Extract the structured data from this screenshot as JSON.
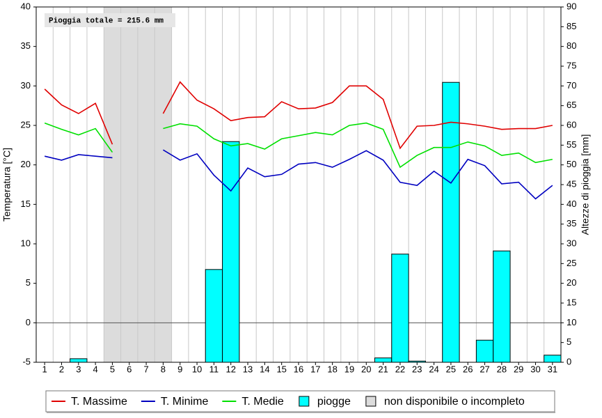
{
  "chart_data": {
    "type": "combo",
    "annotation": "Pioggia totale = 215.6 mm",
    "ylabel": "Temperatura [°C]",
    "y2label": "Altezze di pioggia [mm]",
    "categories": [
      "1",
      "2",
      "3",
      "4",
      "5",
      "6",
      "7",
      "8",
      "9",
      "10",
      "11",
      "12",
      "13",
      "14",
      "15",
      "16",
      "17",
      "18",
      "19",
      "20",
      "21",
      "22",
      "23",
      "24",
      "25",
      "26",
      "27",
      "28",
      "29",
      "30",
      "31"
    ],
    "ylim": [
      -5,
      40
    ],
    "yticks": [
      -5,
      0,
      5,
      10,
      15,
      20,
      25,
      30,
      35,
      40
    ],
    "y2lim": [
      0,
      90
    ],
    "y2ticks": [
      0,
      5,
      10,
      15,
      20,
      25,
      30,
      35,
      40,
      45,
      50,
      55,
      60,
      65,
      70,
      75,
      80,
      85,
      90
    ],
    "grid": true,
    "unavailable": [
      "5",
      "6",
      "7",
      "8"
    ],
    "unavailable_label": "non disponibile o incompleto",
    "unavailable_color": "#dcdcdc",
    "series": [
      {
        "name": "T. Massime",
        "type": "line",
        "color": "#e00000",
        "values": [
          29.6,
          27.6,
          26.5,
          27.8,
          22.6,
          null,
          null,
          26.5,
          30.5,
          28.2,
          27.1,
          25.6,
          26.0,
          26.1,
          28.0,
          27.1,
          27.2,
          27.9,
          30.0,
          30.0,
          28.3,
          22.1,
          24.9,
          25.0,
          25.4,
          25.2,
          24.9,
          24.5,
          24.6,
          24.6,
          25.0
        ]
      },
      {
        "name": "T. Minime",
        "type": "line",
        "color": "#0000c0",
        "values": [
          21.1,
          20.6,
          21.3,
          21.1,
          20.9,
          null,
          null,
          21.9,
          20.6,
          21.4,
          18.7,
          16.7,
          19.6,
          18.5,
          18.8,
          20.1,
          20.3,
          19.7,
          20.7,
          21.8,
          20.6,
          17.8,
          17.4,
          19.2,
          17.7,
          20.7,
          19.9,
          17.6,
          17.8,
          15.7,
          17.4
        ]
      },
      {
        "name": "T. Medie",
        "type": "line",
        "color": "#00e000",
        "values": [
          25.3,
          24.5,
          23.8,
          24.6,
          21.6,
          null,
          null,
          24.6,
          25.2,
          24.9,
          23.3,
          22.4,
          22.7,
          22.0,
          23.3,
          23.7,
          24.1,
          23.8,
          25.0,
          25.3,
          24.5,
          19.7,
          21.2,
          22.2,
          22.2,
          22.9,
          22.4,
          21.2,
          21.5,
          20.3,
          20.7
        ]
      },
      {
        "name": "piogge",
        "type": "bar",
        "axis": "y2",
        "color": "#00ffff",
        "values": [
          null,
          null,
          0.9,
          null,
          null,
          null,
          null,
          null,
          null,
          null,
          23.5,
          55.9,
          null,
          null,
          null,
          null,
          null,
          null,
          null,
          null,
          1.1,
          27.4,
          0.3,
          null,
          70.9,
          null,
          5.6,
          28.2,
          null,
          null,
          1.8
        ]
      }
    ]
  }
}
